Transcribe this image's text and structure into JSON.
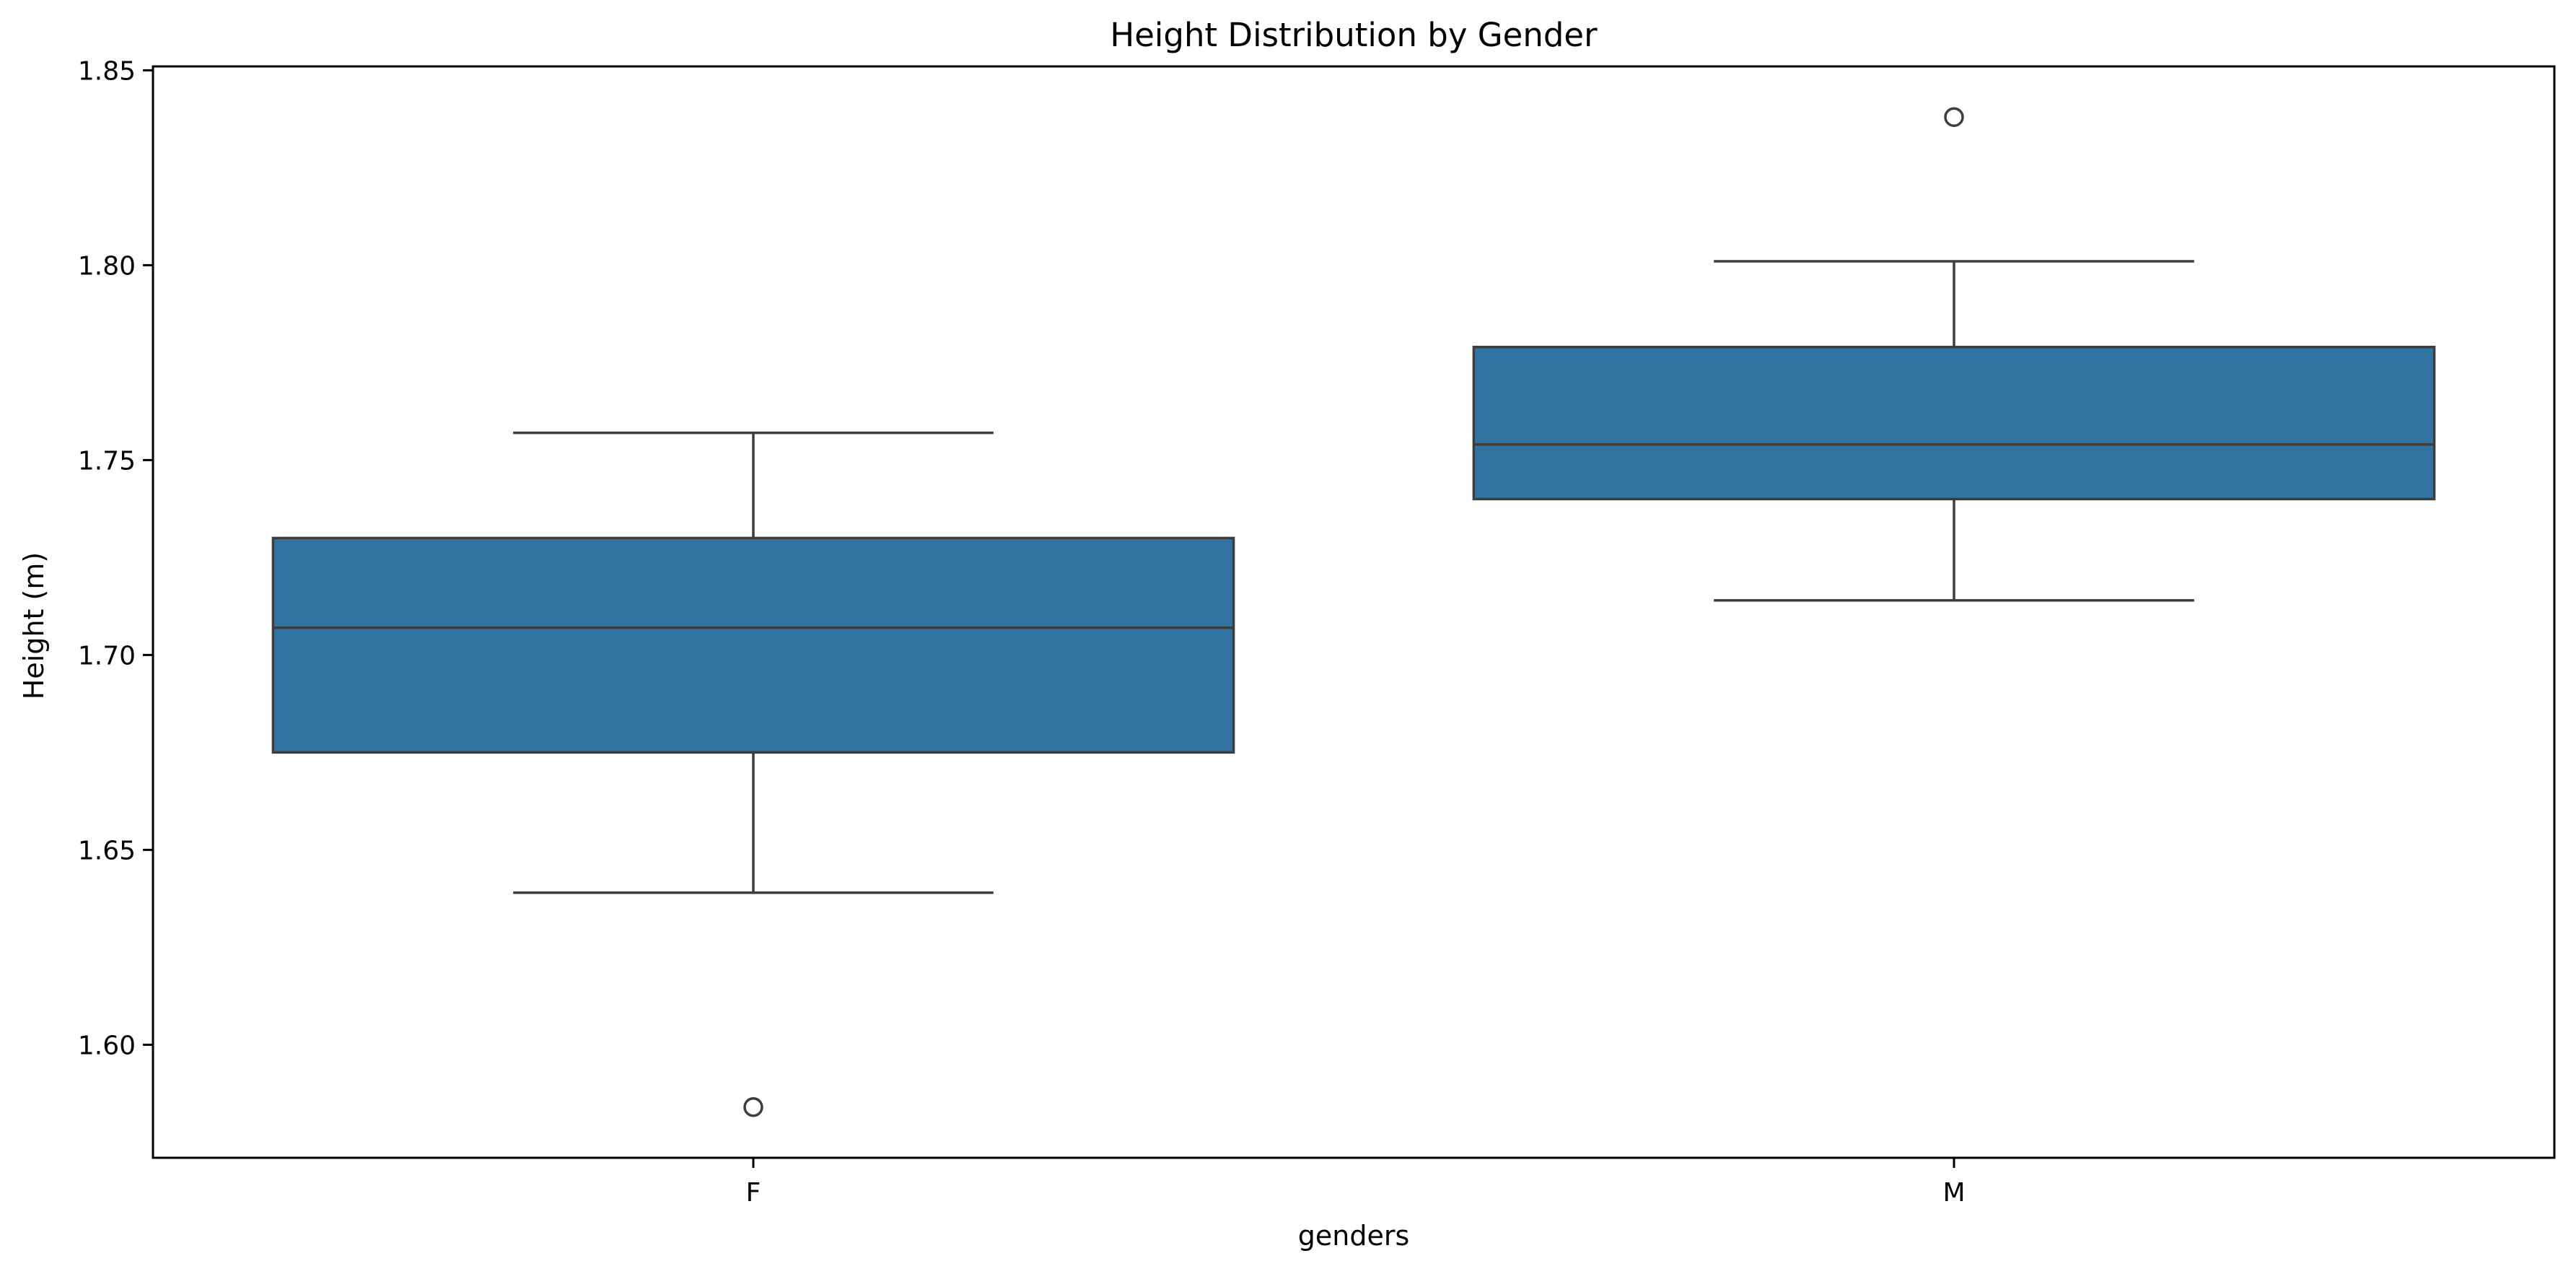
{
  "chart_data": {
    "type": "box",
    "title": "Height Distribution by Gender",
    "xlabel": "genders",
    "ylabel": "Height (m)",
    "categories": [
      "F",
      "M"
    ],
    "ylim": [
      1.571,
      1.851
    ],
    "yticks": [
      "1.60",
      "1.65",
      "1.70",
      "1.75",
      "1.80",
      "1.85"
    ],
    "grid": false,
    "box_color": "#3274a1",
    "line_color": "#3d3d3d",
    "boxes": [
      {
        "category": "F",
        "whisker_low": 1.639,
        "q1": 1.675,
        "median": 1.707,
        "q3": 1.73,
        "whisker_high": 1.757,
        "outliers": [
          1.584
        ]
      },
      {
        "category": "M",
        "whisker_low": 1.714,
        "q1": 1.74,
        "median": 1.754,
        "q3": 1.779,
        "whisker_high": 1.801,
        "outliers": [
          1.838
        ]
      }
    ]
  }
}
